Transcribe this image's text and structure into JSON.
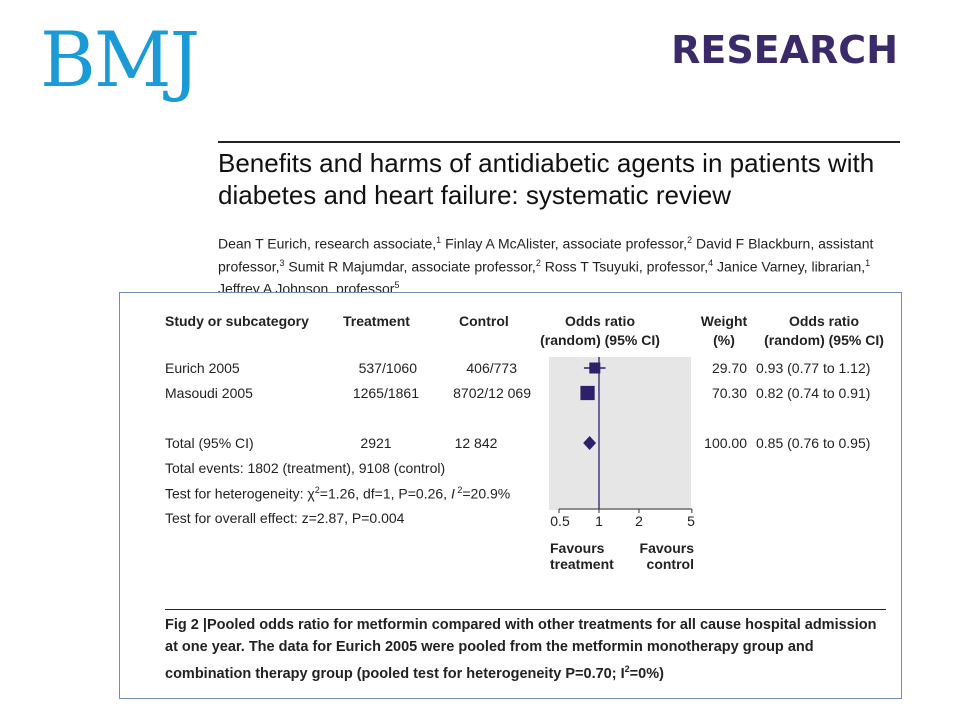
{
  "header": {
    "logo": "BMJ",
    "section": "RESEARCH"
  },
  "article": {
    "title": "Benefits and harms of antidiabetic agents in patients with diabetes and heart failure: systematic review",
    "authors": [
      {
        "name": "Dean T Eurich",
        "role": "research associate",
        "aff": "1"
      },
      {
        "name": "Finlay A McAlister",
        "role": "associate professor",
        "aff": "2"
      },
      {
        "name": "David F Blackburn",
        "role": "assistant professor",
        "aff": "3"
      },
      {
        "name": "Sumit R Majumdar",
        "role": "associate professor",
        "aff": "2"
      },
      {
        "name": "Ross T Tsuyuki",
        "role": "professor",
        "aff": "4"
      },
      {
        "name": "Janice Varney",
        "role": "librarian",
        "aff": "1"
      },
      {
        "name": "Jeffrey A Johnson",
        "role": "professor",
        "aff": "5"
      }
    ]
  },
  "figure": {
    "headers": {
      "study": "Study or subcategory",
      "treatment": "Treatment",
      "control": "Control",
      "or_l1": "Odds ratio",
      "or_l2": "(random) (95% CI)",
      "weight_l1": "Weight",
      "weight_l2": "(%)",
      "or2_l1": "Odds ratio",
      "or2_l2": "(random) (95% CI)"
    },
    "rows": [
      {
        "study": "Eurich 2005",
        "treatment": "537/1060",
        "control": "406/773",
        "weight": "29.70",
        "or_text": "0.93 (0.77 to 1.12)"
      },
      {
        "study": "Masoudi 2005",
        "treatment": "1265/1861",
        "control": "8702/12 069",
        "weight": "70.30",
        "or_text": "0.82 (0.74 to 0.91)"
      }
    ],
    "total": {
      "study": "Total (95% CI)",
      "treatment": "2921",
      "control": "12 842",
      "weight": "100.00",
      "or_text": "0.85 (0.76 to 0.95)"
    },
    "notes": {
      "events": "Total events: 1802 (treatment), 9108 (control)",
      "het_prefix": "Test for heterogeneity: ",
      "het_chi": "χ",
      "het_chi_sup": "2",
      "het_mid": "=1.26, df=1, P=0.26, ",
      "het_i": "I",
      "het_i_sup": " 2",
      "het_suffix": "=20.9%",
      "overall": "Test for overall effect: z=2.87, P=0.004"
    },
    "axis": {
      "ticks": [
        "0.5",
        "1",
        "2",
        "5"
      ],
      "favours_left_l1": "Favours",
      "favours_left_l2": "treatment",
      "favours_right_l1": "Favours",
      "favours_right_l2": "control"
    },
    "caption": {
      "label": "Fig 2",
      "sep": "|",
      "text_a": "Pooled odds ratio for metformin compared with other treatments for all cause hospital admission at one year. The data for Eurich 2005 were pooled from the metformin monotherapy group and combination therapy group (pooled test for heterogeneity P=0.70; I",
      "text_sup": "2",
      "text_b": "=0%)"
    }
  },
  "chart_data": {
    "type": "forest",
    "x_scale": "log",
    "xlim": [
      0.5,
      5
    ],
    "xticks": [
      0.5,
      1,
      2,
      5
    ],
    "reference_line": 1,
    "studies": [
      {
        "name": "Eurich 2005",
        "or": 0.93,
        "ci": [
          0.77,
          1.12
        ],
        "weight": 29.7
      },
      {
        "name": "Masoudi 2005",
        "or": 0.82,
        "ci": [
          0.74,
          0.91
        ],
        "weight": 70.3
      }
    ],
    "pooled": {
      "name": "Total (95% CI)",
      "or": 0.85,
      "ci": [
        0.76,
        0.95
      ]
    },
    "colors": {
      "marker": "#2e1f6b",
      "panel": "#e6e6e6"
    }
  }
}
